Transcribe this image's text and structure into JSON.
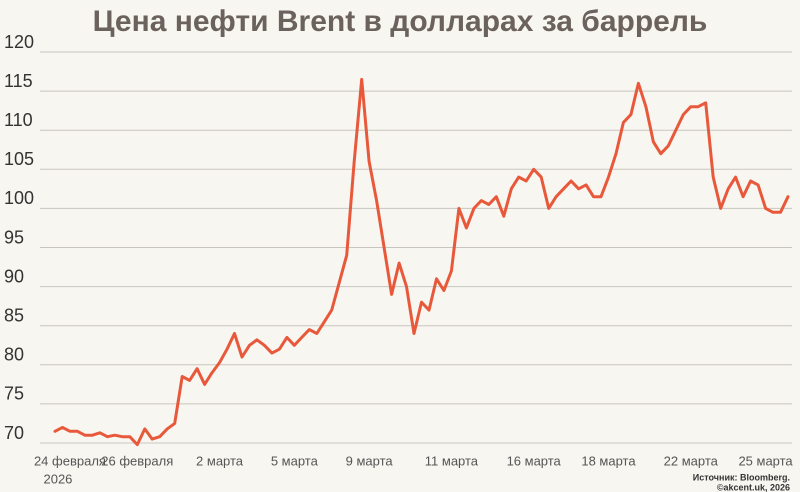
{
  "chart_data": {
    "type": "line",
    "title": "Цена нефти Brent в долларах за баррель",
    "categories": [
      null,
      null,
      "24 февраля",
      null,
      null,
      null,
      null,
      null,
      null,
      null,
      null,
      "26 февраля",
      null,
      null,
      null,
      null,
      null,
      null,
      null,
      null,
      null,
      null,
      "2 марта",
      null,
      null,
      null,
      null,
      null,
      null,
      null,
      null,
      null,
      "5 марта",
      null,
      null,
      null,
      null,
      null,
      null,
      null,
      null,
      null,
      "9 марта",
      null,
      null,
      null,
      null,
      null,
      null,
      null,
      null,
      null,
      null,
      "11 марта",
      null,
      null,
      null,
      null,
      null,
      null,
      null,
      null,
      null,
      null,
      "16 марта",
      null,
      null,
      null,
      null,
      null,
      null,
      null,
      null,
      null,
      "18 марта",
      null,
      null,
      null,
      null,
      null,
      null,
      null,
      null,
      null,
      null,
      "22 марта",
      null,
      null,
      null,
      null,
      null,
      null,
      null,
      null,
      null,
      "25 марта",
      null,
      null,
      null
    ],
    "x_sublabel": "2026",
    "series": [
      {
        "name": "Brent",
        "color": "#e8593c",
        "values": [
          71.5,
          72,
          71.5,
          71.5,
          71,
          71,
          71.3,
          70.8,
          71,
          70.8,
          70.8,
          69.8,
          71.8,
          70.5,
          70.8,
          71.8,
          72.5,
          78.5,
          78,
          79.5,
          77.5,
          79,
          80.3,
          82,
          84,
          81,
          82.5,
          83.2,
          82.5,
          81.5,
          82,
          83.5,
          82.5,
          83.5,
          84.5,
          84,
          85.5,
          87,
          90.5,
          94,
          106,
          116.5,
          106,
          101,
          95,
          89,
          93,
          90,
          84,
          88,
          87,
          91,
          89.5,
          92,
          100,
          97.5,
          100,
          101,
          100.5,
          101.5,
          99,
          102.5,
          104,
          103.5,
          105,
          104,
          100,
          101.5,
          102.5,
          103.5,
          102.5,
          103,
          101.5,
          101.5,
          104,
          107,
          111,
          112,
          116,
          113,
          108.5,
          107,
          108,
          110,
          112,
          113,
          113,
          113.5,
          104,
          100,
          102.5,
          104,
          101.5,
          103.5,
          103,
          100,
          99.5,
          99.5,
          101.5
        ]
      }
    ],
    "ylim": [
      70,
      120
    ],
    "yticks": [
      70,
      75,
      80,
      85,
      90,
      95,
      100,
      105,
      110,
      115,
      120
    ],
    "grid": true,
    "source": [
      "Источник: Bloomberg.",
      "©akcent.uk, 2026"
    ]
  }
}
